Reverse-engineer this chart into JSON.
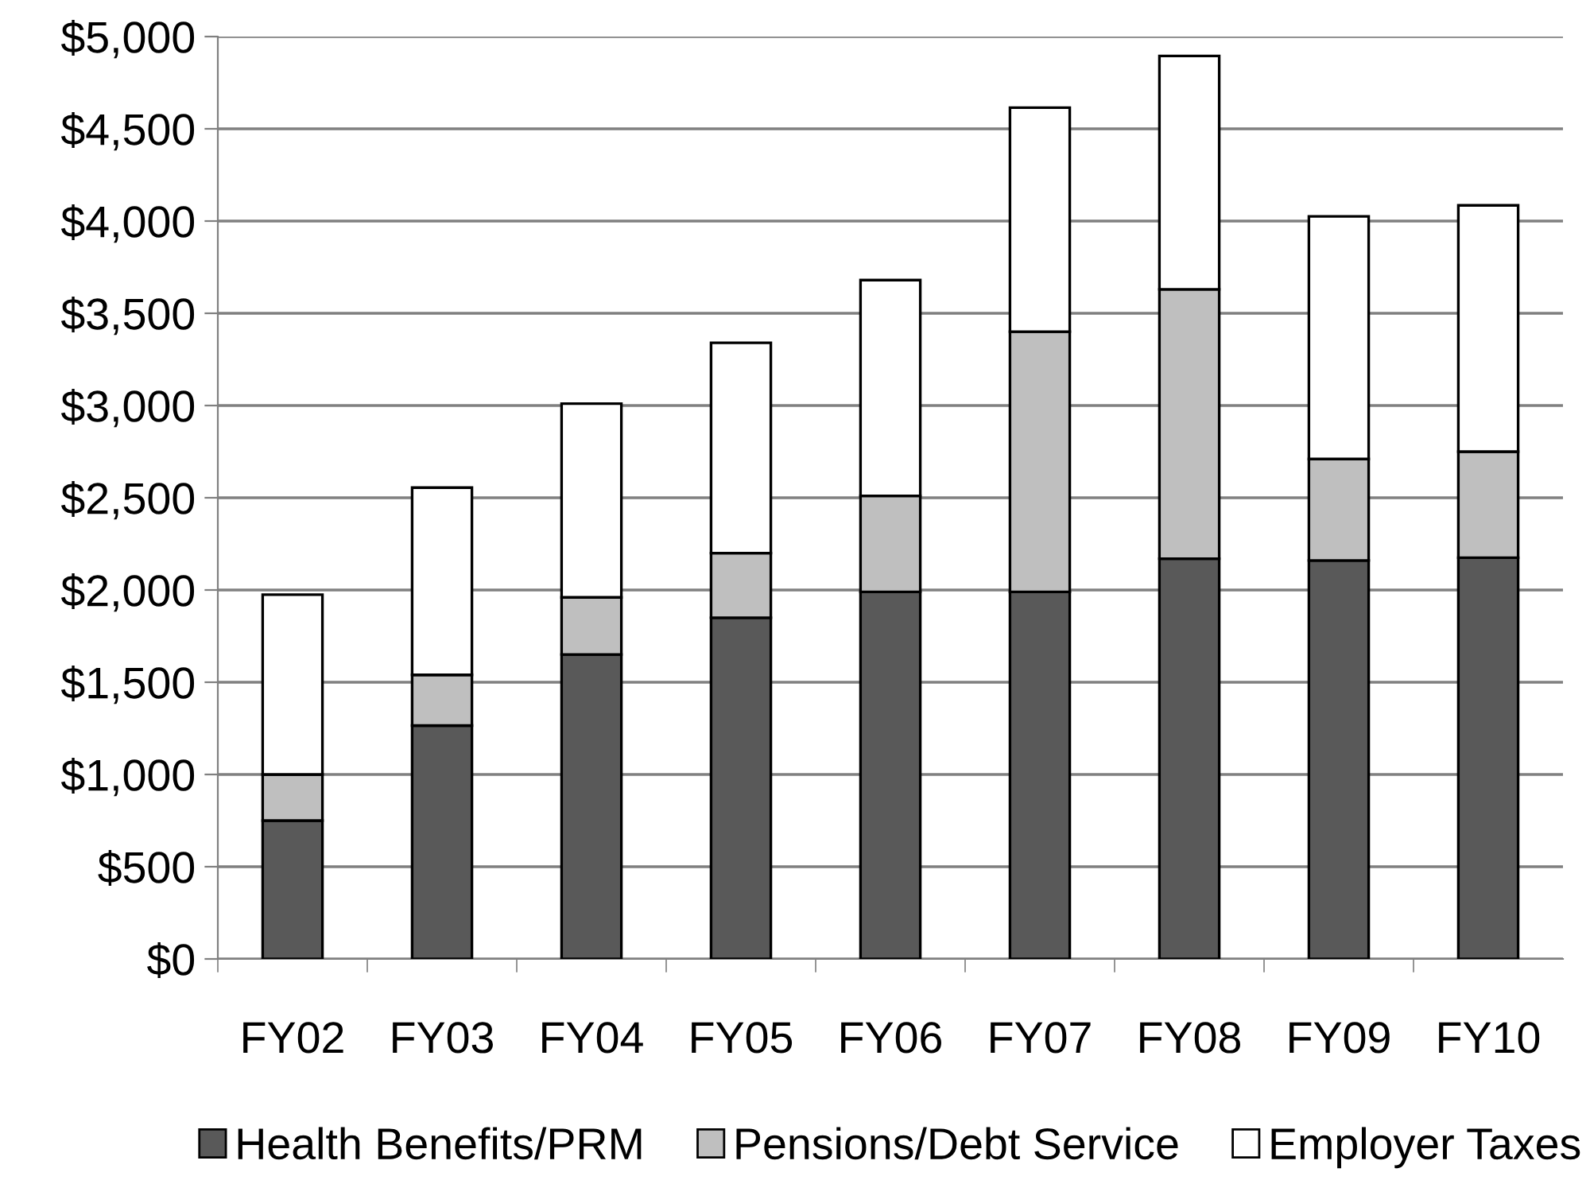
{
  "chart_data": {
    "type": "bar",
    "stacked": true,
    "categories": [
      "FY02",
      "FY03",
      "FY04",
      "FY05",
      "FY06",
      "FY07",
      "FY08",
      "FY09",
      "FY10"
    ],
    "series": [
      {
        "name": "Health Benefits/PRM",
        "color": "#595959",
        "values": [
          750,
          1265,
          1650,
          1850,
          1990,
          1990,
          2170,
          2160,
          2175
        ]
      },
      {
        "name": "Pensions/Debt Service",
        "color": "#bfbfbf",
        "values": [
          250,
          275,
          310,
          350,
          520,
          1410,
          1460,
          550,
          575
        ]
      },
      {
        "name": "Employer Taxes",
        "color": "#ffffff",
        "values": [
          975,
          1015,
          1050,
          1140,
          1170,
          1215,
          1265,
          1315,
          1335
        ]
      }
    ],
    "ylim": [
      0,
      5000
    ],
    "yticks": [
      {
        "value": 0,
        "label": "$0"
      },
      {
        "value": 500,
        "label": "$500"
      },
      {
        "value": 1000,
        "label": "$1,000"
      },
      {
        "value": 1500,
        "label": "$1,500"
      },
      {
        "value": 2000,
        "label": "$2,000"
      },
      {
        "value": 2500,
        "label": "$2,500"
      },
      {
        "value": 3000,
        "label": "$3,000"
      },
      {
        "value": 3500,
        "label": "$3,500"
      },
      {
        "value": 4000,
        "label": "$4,000"
      },
      {
        "value": 4500,
        "label": "$4,500"
      },
      {
        "value": 5000,
        "label": "$5,000"
      }
    ],
    "grid": "y",
    "legend": "bottom"
  }
}
